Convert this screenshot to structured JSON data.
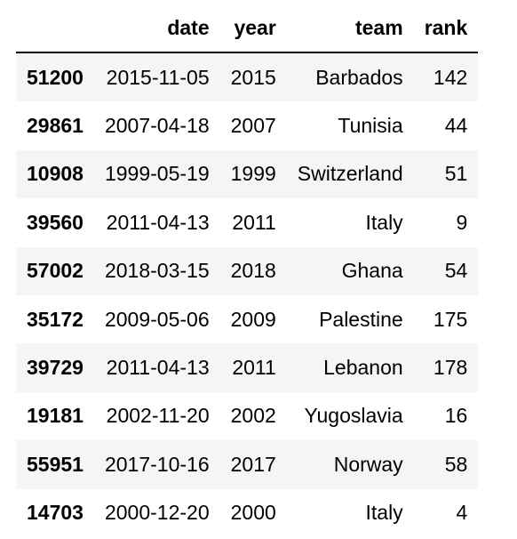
{
  "table": {
    "columns": [
      "",
      "date",
      "year",
      "team",
      "rank"
    ],
    "rows": [
      {
        "index": "51200",
        "date": "2015-11-05",
        "year": "2015",
        "team": "Barbados",
        "rank": "142"
      },
      {
        "index": "29861",
        "date": "2007-04-18",
        "year": "2007",
        "team": "Tunisia",
        "rank": "44"
      },
      {
        "index": "10908",
        "date": "1999-05-19",
        "year": "1999",
        "team": "Switzerland",
        "rank": "51"
      },
      {
        "index": "39560",
        "date": "2011-04-13",
        "year": "2011",
        "team": "Italy",
        "rank": "9"
      },
      {
        "index": "57002",
        "date": "2018-03-15",
        "year": "2018",
        "team": "Ghana",
        "rank": "54"
      },
      {
        "index": "35172",
        "date": "2009-05-06",
        "year": "2009",
        "team": "Palestine",
        "rank": "175"
      },
      {
        "index": "39729",
        "date": "2011-04-13",
        "year": "2011",
        "team": "Lebanon",
        "rank": "178"
      },
      {
        "index": "19181",
        "date": "2002-11-20",
        "year": "2002",
        "team": "Yugoslavia",
        "rank": "16"
      },
      {
        "index": "55951",
        "date": "2017-10-16",
        "year": "2017",
        "team": "Norway",
        "rank": "58"
      },
      {
        "index": "14703",
        "date": "2000-12-20",
        "year": "2000",
        "team": "Italy",
        "rank": "4"
      }
    ]
  },
  "colors": {
    "stripe": "#f5f5f5",
    "background": "#ffffff",
    "text": "#000000",
    "header_rule": "#000000"
  }
}
